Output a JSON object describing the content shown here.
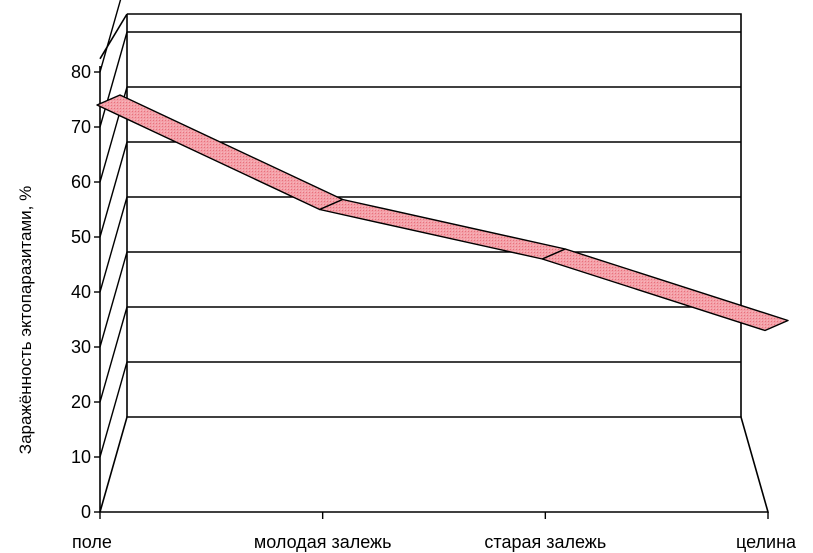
{
  "chart_data": {
    "type": "line",
    "style": "3d-ribbon",
    "categories": [
      "поле",
      "молодая залежь",
      "старая залежь",
      "целина"
    ],
    "series": [
      {
        "values": [
          74,
          55,
          46,
          33
        ],
        "color": "#f28a94"
      }
    ],
    "ylabel": "Заражённость эктопаразитами, %",
    "xlabel": "",
    "title": "",
    "ylim": [
      0,
      80
    ],
    "yticks": [
      0,
      10,
      20,
      30,
      40,
      50,
      60,
      70,
      80
    ],
    "grid": true,
    "legend": "none"
  }
}
